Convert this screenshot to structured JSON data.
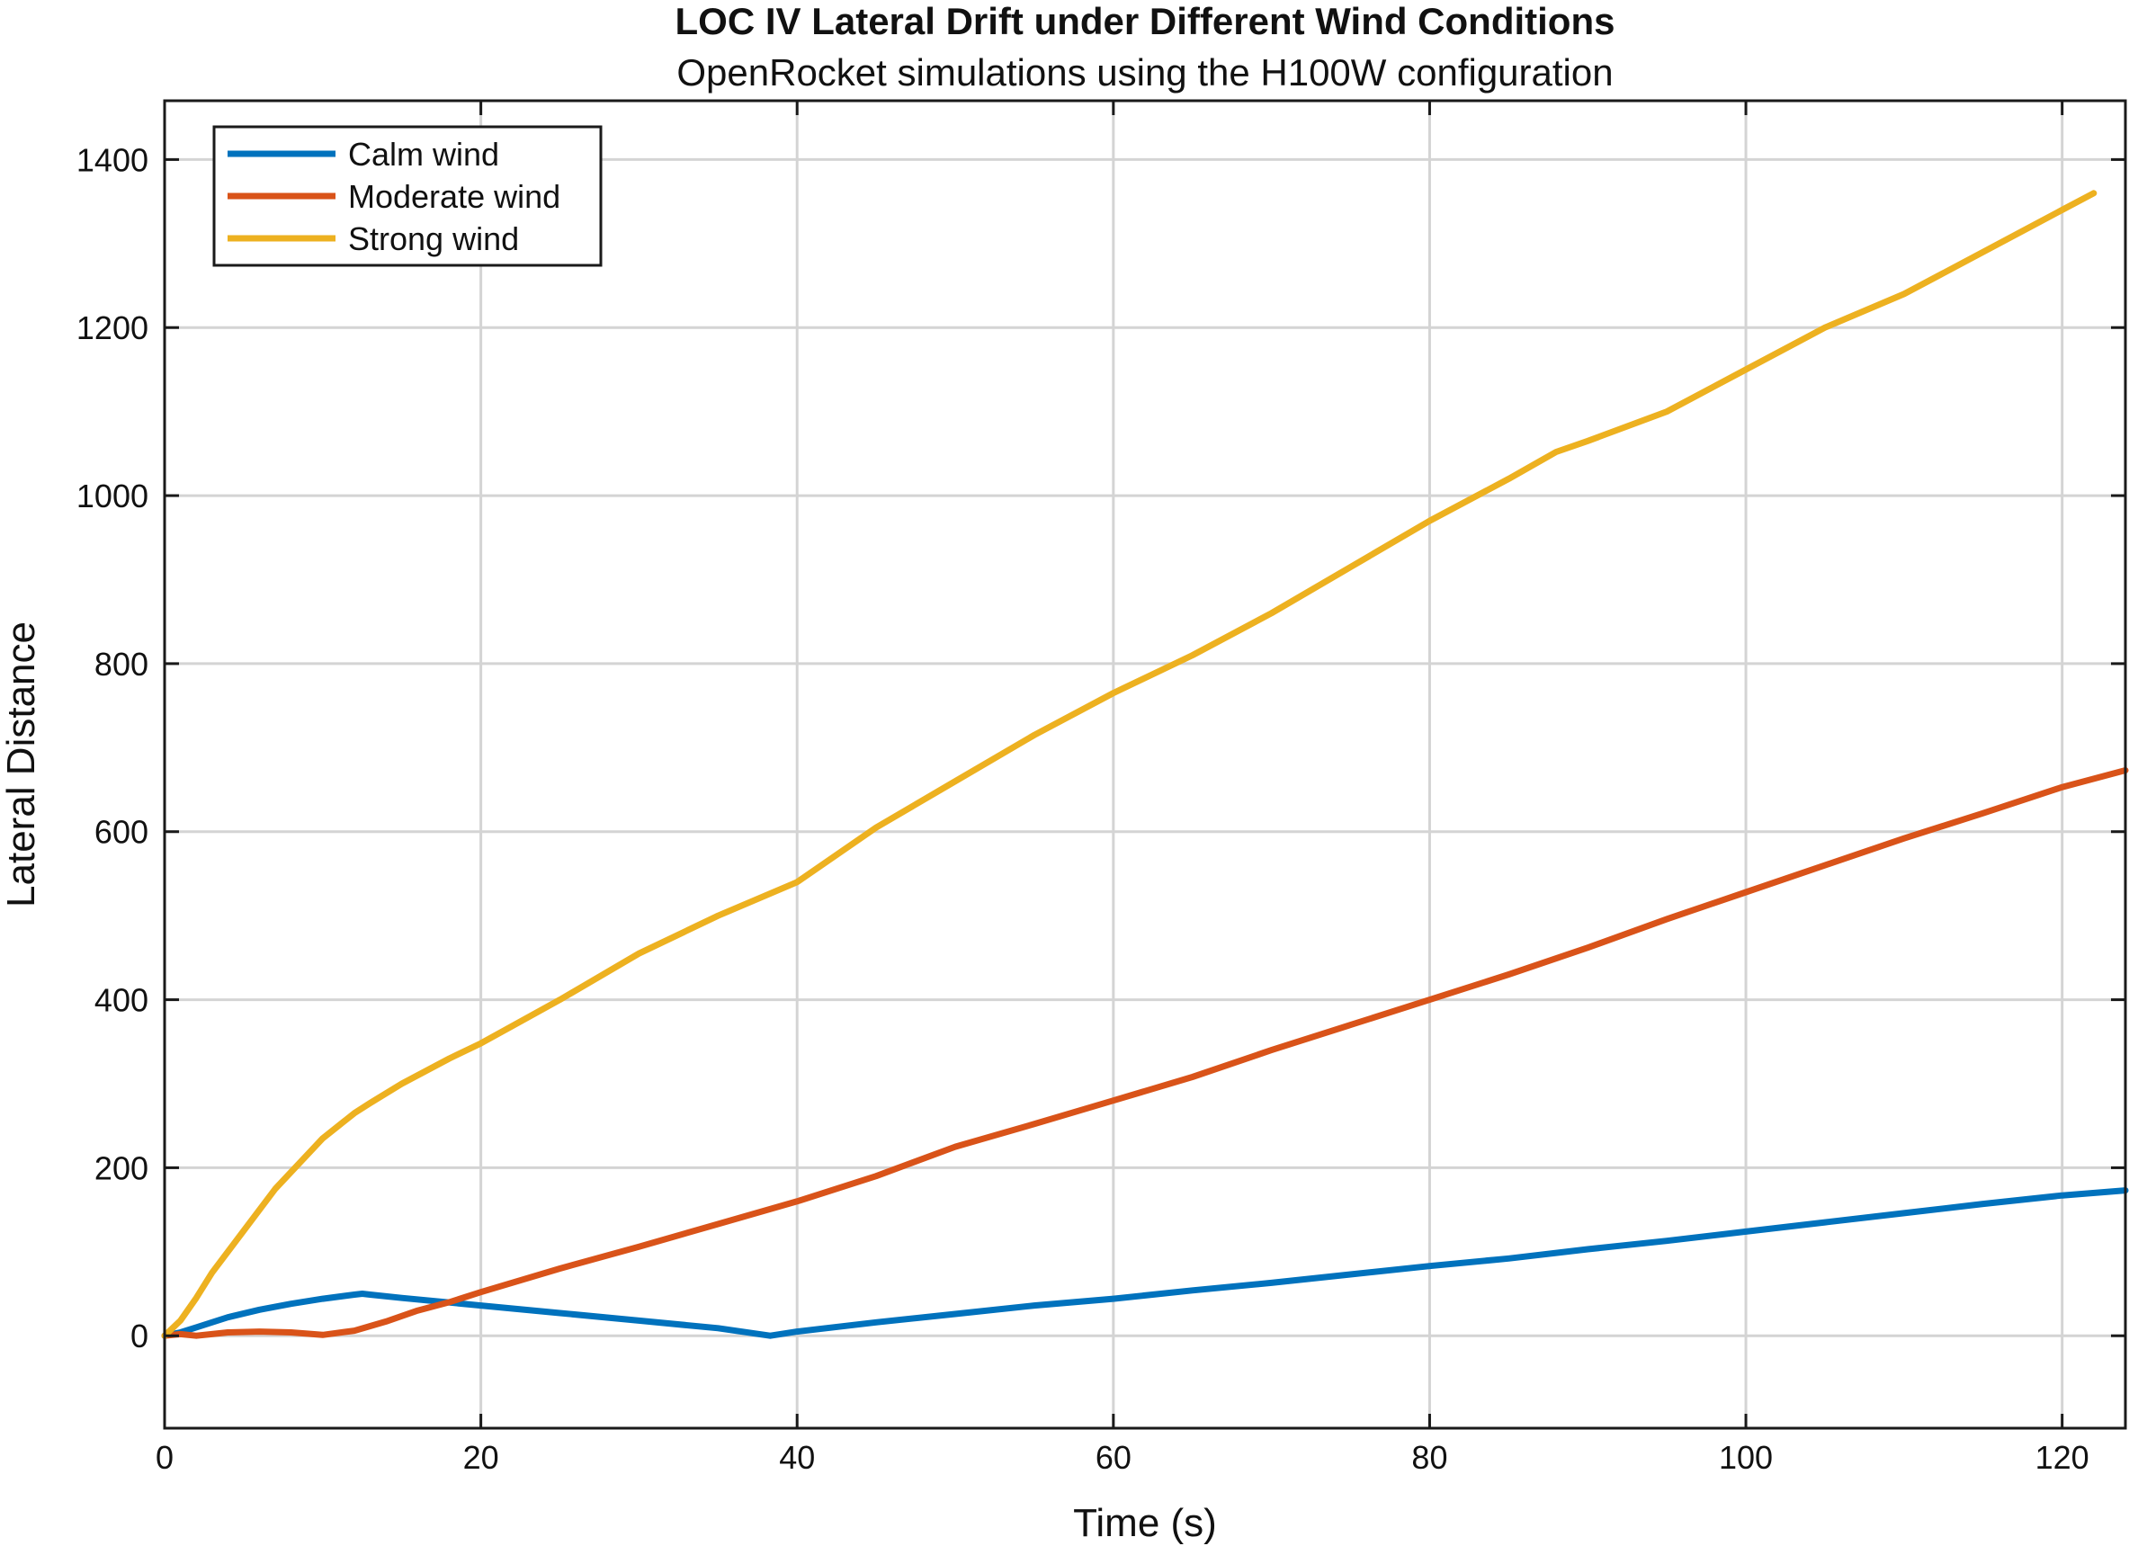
{
  "chart_data": {
    "type": "line",
    "title": "LOC IV Lateral Drift under Different Wind Conditions",
    "subtitle": "OpenRocket simulations using the H100W configuration",
    "xlabel": "Time (s)",
    "ylabel": "Lateral Distance",
    "xlim": [
      0,
      124
    ],
    "ylim": [
      -110,
      1470
    ],
    "x_ticks": [
      0,
      20,
      40,
      60,
      80,
      100,
      120
    ],
    "y_ticks": [
      0,
      200,
      400,
      600,
      800,
      1000,
      1200,
      1400
    ],
    "grid": true,
    "legend_position": "top-left",
    "series": [
      {
        "name": "Calm wind",
        "color": "#0072BD",
        "x": [
          0,
          1,
          2,
          4,
          6,
          8,
          10,
          12,
          12.5,
          13,
          15,
          20,
          25,
          30,
          35,
          38.3,
          40,
          45,
          50,
          55,
          60,
          65,
          70,
          75,
          80,
          85,
          90,
          95,
          100,
          105,
          110,
          115,
          120,
          124
        ],
        "y": [
          0,
          4,
          10,
          22,
          31,
          38,
          44,
          49,
          50,
          49,
          45,
          36,
          27,
          18,
          9,
          0,
          5,
          16,
          26,
          36,
          44,
          54,
          63,
          73,
          83,
          92,
          103,
          113,
          124,
          135,
          146,
          157,
          167,
          173
        ]
      },
      {
        "name": "Moderate wind",
        "color": "#D95319",
        "x": [
          0,
          1,
          2,
          3,
          4,
          6,
          8,
          10,
          12,
          14,
          16,
          18,
          20,
          25,
          30,
          35,
          40,
          45,
          50,
          55,
          60,
          65,
          70,
          75,
          80,
          85,
          90,
          95,
          100,
          105,
          110,
          115,
          120,
          124
        ],
        "y": [
          0,
          2,
          0,
          2,
          4,
          5,
          4,
          1,
          6,
          17,
          30,
          40,
          52,
          80,
          106,
          133,
          160,
          190,
          225,
          252,
          280,
          308,
          340,
          370,
          400,
          430,
          462,
          496,
          528,
          560,
          592,
          622,
          653,
          673
        ]
      },
      {
        "name": "Strong wind",
        "color": "#EDB120",
        "x": [
          0,
          1,
          2,
          3,
          5,
          7,
          10,
          12,
          13,
          15,
          18,
          20,
          25,
          30,
          35,
          40,
          45,
          50,
          55,
          60,
          65,
          70,
          75,
          80,
          85,
          88,
          90,
          95,
          100,
          105,
          110,
          115,
          120,
          122
        ],
        "y": [
          0,
          18,
          45,
          75,
          125,
          175,
          235,
          265,
          277,
          300,
          330,
          348,
          400,
          455,
          500,
          540,
          605,
          660,
          715,
          765,
          810,
          860,
          915,
          970,
          1020,
          1052,
          1065,
          1100,
          1150,
          1200,
          1240,
          1290,
          1340,
          1360
        ]
      }
    ]
  }
}
